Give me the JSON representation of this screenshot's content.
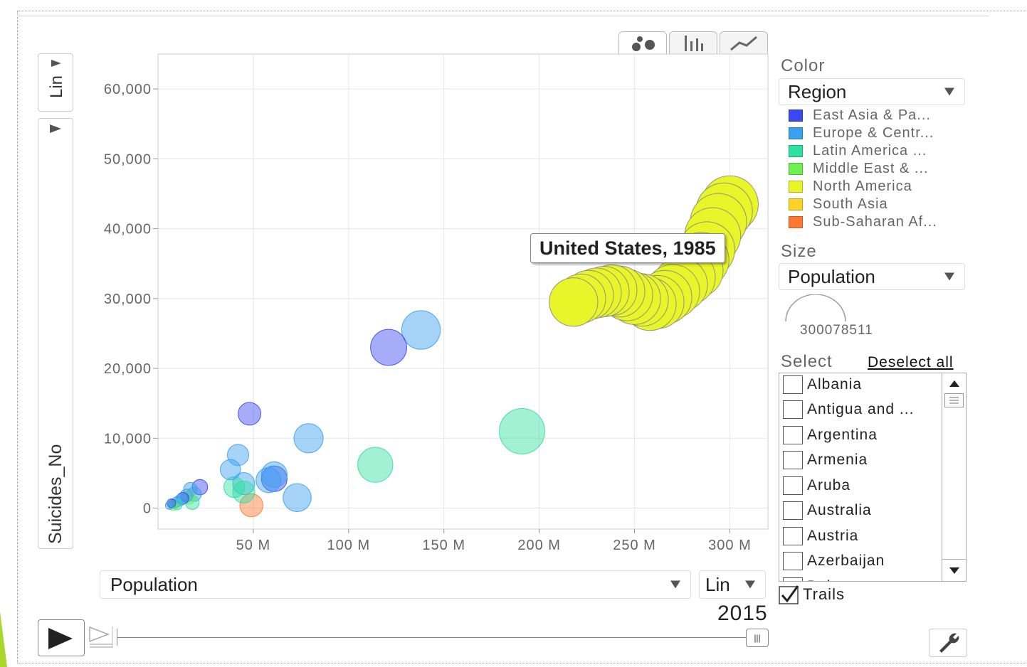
{
  "chart_data": {
    "type": "scatter",
    "subtype": "bubble",
    "title": "",
    "xlabel": "Population",
    "ylabel": "Suicides_No",
    "xlim": [
      0,
      320000000
    ],
    "ylim": [
      -3000,
      65000
    ],
    "x_ticks": [
      {
        "value": 50000000,
        "label": "50 M"
      },
      {
        "value": 100000000,
        "label": "100 M"
      },
      {
        "value": 150000000,
        "label": "150 M"
      },
      {
        "value": 200000000,
        "label": "200 M"
      },
      {
        "value": 250000000,
        "label": "250 M"
      },
      {
        "value": 300000000,
        "label": "300 M"
      }
    ],
    "y_ticks": [
      {
        "value": 0,
        "label": "0"
      },
      {
        "value": 10000,
        "label": "10,000"
      },
      {
        "value": 20000,
        "label": "20,000"
      },
      {
        "value": 30000,
        "label": "30,000"
      },
      {
        "value": 40000,
        "label": "40,000"
      },
      {
        "value": 50000,
        "label": "50,000"
      },
      {
        "value": 60000,
        "label": "60,000"
      }
    ],
    "grid": true,
    "highlighted": {
      "label": "United States, 1985"
    },
    "series": [
      {
        "name": "East Asia & Pa...",
        "color": "#3a48f0",
        "points": [
          {
            "x": 121000000,
            "y": 23000
          },
          {
            "x": 48000000,
            "y": 13500
          },
          {
            "x": 61000000,
            "y": 4200
          },
          {
            "x": 22000000,
            "y": 3000
          },
          {
            "x": 13000000,
            "y": 1400
          },
          {
            "x": 7000000,
            "y": 700
          }
        ]
      },
      {
        "name": "Europe & Centr...",
        "color": "#3aa0f0",
        "points": [
          {
            "x": 138000000,
            "y": 25500
          },
          {
            "x": 79000000,
            "y": 10000
          },
          {
            "x": 42000000,
            "y": 7600
          },
          {
            "x": 38000000,
            "y": 5500
          },
          {
            "x": 61000000,
            "y": 4800
          },
          {
            "x": 58000000,
            "y": 4000
          },
          {
            "x": 45000000,
            "y": 3500
          },
          {
            "x": 73000000,
            "y": 1500
          },
          {
            "x": 17000000,
            "y": 2700
          },
          {
            "x": 19000000,
            "y": 2000
          },
          {
            "x": 15000000,
            "y": 1800
          },
          {
            "x": 12000000,
            "y": 1200
          },
          {
            "x": 10000000,
            "y": 900
          },
          {
            "x": 8000000,
            "y": 600
          },
          {
            "x": 6000000,
            "y": 400
          }
        ]
      },
      {
        "name": "Latin America ...",
        "color": "#30e0a0",
        "points": [
          {
            "x": 191000000,
            "y": 11000
          },
          {
            "x": 114000000,
            "y": 6200
          },
          {
            "x": 40000000,
            "y": 3000
          },
          {
            "x": 45000000,
            "y": 2300
          },
          {
            "x": 18000000,
            "y": 800
          },
          {
            "x": 10000000,
            "y": 500
          }
        ]
      },
      {
        "name": "Middle East & ...",
        "color": "#6ef050",
        "points": [
          {
            "x": 16000000,
            "y": 1500
          },
          {
            "x": 8000000,
            "y": 300
          }
        ]
      },
      {
        "name": "North America",
        "color": "#e8f528",
        "points": [
          {
            "x": 218000000,
            "y": 29500
          },
          {
            "x": 222000000,
            "y": 30000
          },
          {
            "x": 226000000,
            "y": 30500
          },
          {
            "x": 230000000,
            "y": 30800
          },
          {
            "x": 234000000,
            "y": 31000
          },
          {
            "x": 238000000,
            "y": 31200
          },
          {
            "x": 242000000,
            "y": 31000
          },
          {
            "x": 246000000,
            "y": 30500
          },
          {
            "x": 250000000,
            "y": 30000
          },
          {
            "x": 254000000,
            "y": 29800
          },
          {
            "x": 258000000,
            "y": 29200
          },
          {
            "x": 262000000,
            "y": 29500
          },
          {
            "x": 266000000,
            "y": 30200
          },
          {
            "x": 270000000,
            "y": 31000
          },
          {
            "x": 274000000,
            "y": 32000
          },
          {
            "x": 278000000,
            "y": 33000
          },
          {
            "x": 282000000,
            "y": 34000
          },
          {
            "x": 285000000,
            "y": 35500
          },
          {
            "x": 288000000,
            "y": 37000
          },
          {
            "x": 291000000,
            "y": 39000
          },
          {
            "x": 294000000,
            "y": 41000
          },
          {
            "x": 297000000,
            "y": 42500
          },
          {
            "x": 300000000,
            "y": 43500
          }
        ]
      },
      {
        "name": "South Asia",
        "color": "#ffd22a",
        "points": []
      },
      {
        "name": "Sub-Saharan Af...",
        "color": "#ff7a30",
        "points": [
          {
            "x": 49000000,
            "y": 400
          }
        ]
      }
    ]
  },
  "tabs": {
    "bubble_icon": "bubble-chart-icon",
    "bar_icon": "bar-chart-icon",
    "line_icon": "line-chart-icon"
  },
  "y_axis_scale": "Lin",
  "x_axis_scale": "Lin",
  "x_selector": "Population",
  "color_panel": {
    "label": "Color",
    "value": "Region"
  },
  "size_panel": {
    "label": "Size",
    "value": "Population",
    "legend_value": "300078511"
  },
  "select_panel": {
    "label": "Select",
    "deselect_label": "Deselect all",
    "items": [
      "Albania",
      "Antigua and ...",
      "Argentina",
      "Armenia",
      "Aruba",
      "Australia",
      "Austria",
      "Azerbaijan",
      "Bahamas"
    ]
  },
  "trails": {
    "label": "Trails",
    "checked": true
  },
  "year": "2015",
  "colors": {
    "frame_green": "#a8d828",
    "bubble_stroke": "#666666"
  }
}
